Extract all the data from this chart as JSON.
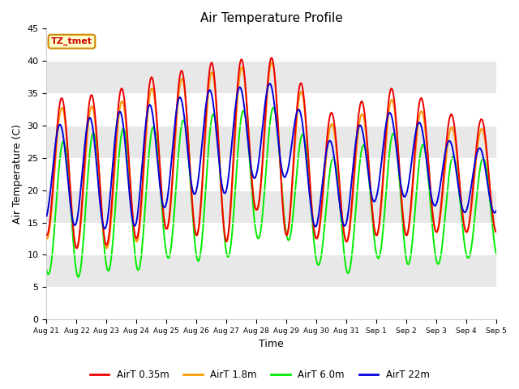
{
  "title": "Air Temperature Profile",
  "xlabel": "Time",
  "ylabel": "Air Temperature (C)",
  "ylim": [
    0,
    45
  ],
  "annotation": "TZ_tmet",
  "legend": [
    "AirT 0.35m",
    "AirT 1.8m",
    "AirT 6.0m",
    "AirT 22m"
  ],
  "colors": [
    "#ee0000",
    "#ff9900",
    "#00ee00",
    "#0000dd"
  ],
  "bg_color": "#ffffff",
  "band_color": "#e8e8e8",
  "tick_labels": [
    "Aug 21",
    "Aug 22",
    "Aug 23",
    "Aug 24",
    "Aug 25",
    "Aug 26",
    "Aug 27",
    "Aug 28",
    "Aug 29",
    "Aug 30",
    "Aug 31",
    "Sep 1",
    "Sep 2",
    "Sep 3",
    "Sep 4",
    "Sep 5"
  ],
  "yticks": [
    0,
    5,
    10,
    15,
    20,
    25,
    30,
    35,
    40,
    45
  ],
  "n_days": 15,
  "ppd": 48
}
